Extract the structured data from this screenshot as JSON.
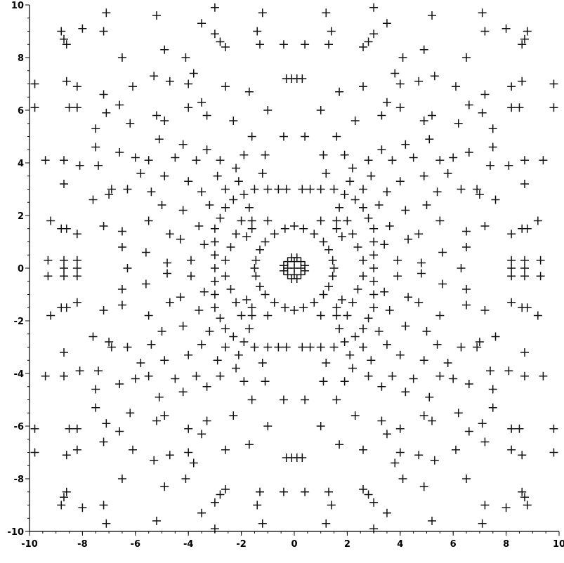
{
  "chart_data": {
    "type": "scatter",
    "title": "",
    "xlabel": "",
    "ylabel": "",
    "xlim": [
      -10,
      10
    ],
    "ylim": [
      -10,
      10
    ],
    "grid": false,
    "marker": "+",
    "marker_color": "#111111",
    "x_ticks": [
      "-10",
      "-8",
      "-6",
      "-4",
      "-2",
      "0",
      "2",
      "4",
      "6",
      "8",
      "10"
    ],
    "y_ticks": [
      "10",
      "8",
      "6",
      "4",
      "2",
      "0",
      "-2",
      "-4",
      "-6",
      "-8",
      "-10"
    ],
    "symmetry": "mirror about x=0 and y=0",
    "quadrant_points": [
      [
        0,
        0
      ],
      [
        0.25,
        0
      ],
      [
        0,
        0.25
      ],
      [
        0.25,
        0.25
      ],
      [
        0.4,
        0.1
      ],
      [
        0.1,
        0.4
      ],
      [
        1.5,
        0
      ],
      [
        1.45,
        0.3
      ],
      [
        1.3,
        0.7
      ],
      [
        1.1,
        1.0
      ],
      [
        0.75,
        1.3
      ],
      [
        0.35,
        1.5
      ],
      [
        0,
        1.6
      ],
      [
        1.6,
        1.5
      ],
      [
        1.6,
        1.8
      ],
      [
        1.8,
        1.2
      ],
      [
        1.0,
        1.8
      ],
      [
        0.3,
        3.0
      ],
      [
        0.6,
        3.0
      ],
      [
        1.0,
        3.0
      ],
      [
        1.5,
        3.0
      ],
      [
        1.9,
        2.8
      ],
      [
        2.3,
        2.6
      ],
      [
        2.6,
        2.3
      ],
      [
        2.8,
        1.9
      ],
      [
        3.0,
        1.5
      ],
      [
        3.0,
        1.0
      ],
      [
        3.0,
        0.5
      ],
      [
        3.0,
        0.0
      ],
      [
        2.6,
        0.3
      ],
      [
        2.4,
        0.8
      ],
      [
        2.2,
        1.3
      ],
      [
        2.0,
        1.8
      ],
      [
        1.7,
        2.3
      ],
      [
        2.1,
        3.3
      ],
      [
        1.2,
        3.6
      ],
      [
        3.4,
        0.9
      ],
      [
        3.6,
        1.6
      ],
      [
        3.2,
        2.4
      ],
      [
        2.6,
        3.0
      ],
      [
        2.2,
        3.8
      ],
      [
        2.8,
        4.1
      ],
      [
        1.1,
        4.3
      ],
      [
        1.9,
        4.3
      ],
      [
        2.9,
        3.5
      ],
      [
        3.5,
        2.9
      ],
      [
        4.2,
        2.2
      ],
      [
        4.3,
        1.1
      ],
      [
        3.9,
        0.3
      ],
      [
        0.4,
        5.0
      ],
      [
        1.6,
        5.0
      ],
      [
        2.3,
        5.6
      ],
      [
        3.3,
        5.8
      ],
      [
        4.2,
        4.7
      ],
      [
        4.5,
        4.2
      ],
      [
        4.9,
        3.5
      ],
      [
        5.0,
        2.4
      ],
      [
        5.5,
        1.8
      ],
      [
        5.6,
        0.6
      ],
      [
        4.8,
        0.2
      ],
      [
        3.7,
        4.1
      ],
      [
        4.0,
        3.3
      ],
      [
        3.3,
        4.5
      ],
      [
        4.7,
        1.3
      ],
      [
        5.4,
        2.9
      ],
      [
        5.8,
        3.6
      ],
      [
        5.1,
        4.9
      ],
      [
        6.0,
        4.2
      ],
      [
        6.3,
        3.0
      ],
      [
        6.5,
        1.4
      ],
      [
        6.5,
        0.8
      ],
      [
        6.3,
        0.0
      ],
      [
        5.2,
        5.8
      ],
      [
        6.2,
        5.5
      ],
      [
        6.6,
        6.2
      ],
      [
        6.1,
        6.9
      ],
      [
        5.3,
        7.3
      ],
      [
        4.7,
        7.1
      ],
      [
        4.0,
        7.0
      ],
      [
        3.8,
        7.4
      ],
      [
        2.6,
        6.9
      ],
      [
        1.7,
        6.7
      ],
      [
        0.3,
        7.2
      ],
      [
        0.1,
        7.2
      ],
      [
        1.3,
        8.5
      ],
      [
        2.8,
        8.6
      ],
      [
        3.0,
        8.9
      ],
      [
        2.6,
        8.4
      ],
      [
        1.4,
        9.0
      ],
      [
        0.4,
        8.5
      ],
      [
        3.5,
        9.3
      ],
      [
        1.2,
        9.7
      ],
      [
        3.0,
        9.9
      ],
      [
        4.1,
        8.0
      ],
      [
        4.9,
        8.3
      ],
      [
        5.2,
        9.6
      ],
      [
        6.5,
        8.0
      ],
      [
        7.1,
        9.7
      ],
      [
        7.2,
        9.0
      ],
      [
        8.0,
        9.1
      ],
      [
        8.7,
        8.7
      ],
      [
        8.8,
        9.0
      ],
      [
        8.6,
        8.5
      ],
      [
        7.5,
        4.6
      ],
      [
        7.4,
        3.9
      ],
      [
        7.6,
        2.6
      ],
      [
        7.0,
        2.8
      ],
      [
        7.2,
        1.6
      ],
      [
        6.9,
        3.0
      ],
      [
        7.2,
        6.6
      ],
      [
        7.1,
        5.9
      ],
      [
        7.5,
        5.3
      ],
      [
        8.2,
        6.1
      ],
      [
        8.2,
        6.9
      ],
      [
        8.6,
        7.1
      ],
      [
        8.5,
        6.1
      ],
      [
        8.1,
        3.9
      ],
      [
        8.7,
        4.1
      ],
      [
        8.7,
        3.2
      ],
      [
        8.8,
        1.5
      ],
      [
        8.6,
        1.5
      ],
      [
        8.2,
        1.3
      ],
      [
        9.2,
        1.8
      ],
      [
        8.7,
        0.3
      ],
      [
        8.7,
        0.0
      ],
      [
        8.2,
        0.3
      ],
      [
        8.2,
        0.0
      ],
      [
        9.3,
        0.3
      ],
      [
        9.4,
        4.1
      ],
      [
        9.8,
        6.1
      ],
      [
        9.8,
        7.0
      ],
      [
        6.6,
        4.4
      ],
      [
        5.5,
        4.1
      ],
      [
        4.9,
        5.6
      ],
      [
        4.0,
        6.1
      ],
      [
        3.5,
        6.3
      ],
      [
        1.0,
        6.0
      ]
    ]
  }
}
